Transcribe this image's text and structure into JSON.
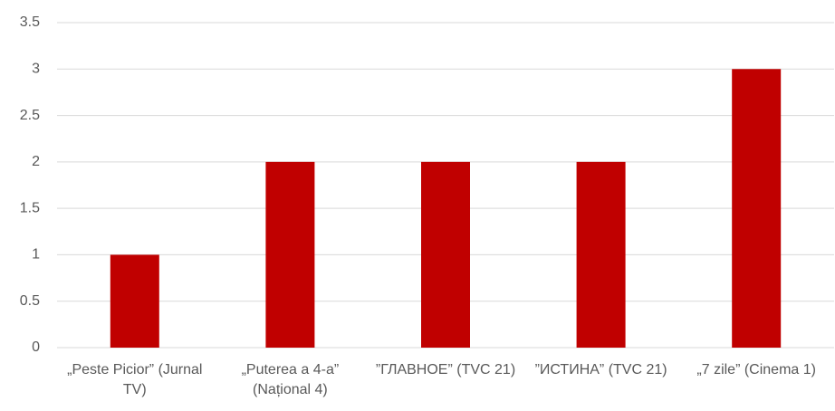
{
  "chart_data": {
    "type": "bar",
    "categories": [
      "„Peste Picior” (Jurnal TV)",
      "„Puterea a 4-a” (Național 4)",
      "”ГЛАВНОЕ” (TVC 21)",
      "”ИСТИНА” (TVC 21)",
      "„7 zile” (Cinema 1)"
    ],
    "values": [
      1,
      2,
      2,
      2,
      3
    ],
    "color": "#c00000",
    "ylim": [
      0,
      3.5
    ],
    "yticks": [
      0,
      0.5,
      1,
      1.5,
      2,
      2.5,
      3,
      3.5
    ],
    "grid": true
  }
}
